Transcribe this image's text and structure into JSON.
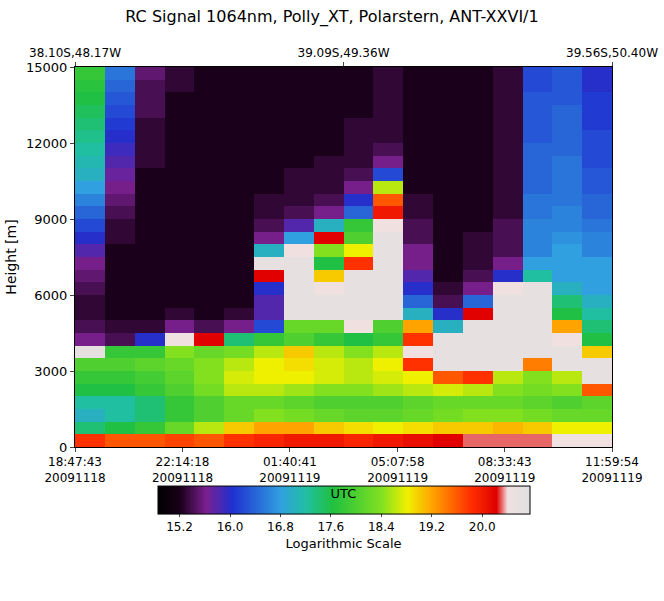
{
  "chart_data": {
    "type": "heatmap",
    "title": "RC Signal 1064nm, Polly_XT, Polarstern, ANT-XXVI/1",
    "x_label": "UTC",
    "y_label": "Height [m]",
    "colorbar_title": "Logarithmic Scale",
    "grid": false,
    "x": [
      "2009-11-18 19:16:23",
      "2009-11-18 20:13:44",
      "2009-11-18 21:11:04",
      "2009-11-18 22:08:25",
      "2009-11-18 23:05:46",
      "2009-11-19 00:03:06",
      "2009-11-19 01:00:27",
      "2009-11-19 01:57:47",
      "2009-11-19 02:55:08",
      "2009-11-19 03:52:29",
      "2009-11-19 04:49:49",
      "2009-11-19 05:47:10",
      "2009-11-19 06:44:30",
      "2009-11-19 07:41:51",
      "2009-11-19 08:39:12",
      "2009-11-19 09:36:32",
      "2009-11-19 10:33:53",
      "2009-11-19 11:31:13"
    ],
    "y": [
      250,
      750,
      1250,
      1750,
      2250,
      2750,
      3250,
      3750,
      4250,
      4750,
      5250,
      5750,
      6250,
      6750,
      7250,
      7750,
      8250,
      8750,
      9250,
      9750,
      10250,
      10750,
      11250,
      11750,
      12250,
      12750,
      13250,
      13750,
      14250,
      14750
    ],
    "z": [
      [
        19.8,
        19.6,
        19.6,
        19.7,
        19.6,
        19.8,
        19.9,
        20.0,
        20.0,
        19.9,
        20.0,
        20.1,
        20.2,
        20.3,
        20.3,
        20.3,
        20.4,
        20.4
      ],
      [
        17.4,
        17.6,
        17.8,
        18.2,
        18.6,
        19.0,
        19.2,
        19.2,
        19.0,
        18.9,
        18.8,
        18.9,
        19.0,
        19.0,
        19.1,
        19.0,
        18.8,
        18.8
      ],
      [
        17.0,
        17.2,
        17.4,
        17.8,
        18.0,
        18.2,
        18.4,
        18.3,
        18.2,
        18.1,
        18.1,
        18.2,
        18.3,
        18.4,
        18.4,
        18.3,
        18.2,
        18.2
      ],
      [
        17.2,
        17.2,
        17.4,
        17.8,
        18.0,
        18.2,
        18.2,
        18.1,
        18.0,
        18.0,
        18.0,
        18.1,
        18.2,
        18.2,
        18.2,
        18.1,
        18.0,
        18.1
      ],
      [
        17.6,
        17.6,
        17.8,
        18.0,
        18.3,
        18.6,
        18.6,
        18.5,
        18.4,
        18.4,
        18.5,
        18.6,
        18.7,
        18.6,
        18.4,
        18.3,
        18.4,
        19.6
      ],
      [
        17.8,
        17.8,
        17.9,
        18.1,
        18.4,
        18.7,
        18.8,
        18.8,
        18.7,
        18.6,
        18.7,
        18.8,
        19.6,
        19.8,
        18.6,
        18.4,
        18.6,
        20.6
      ],
      [
        18.0,
        18.0,
        18.1,
        18.2,
        18.4,
        18.6,
        18.8,
        18.9,
        18.7,
        18.6,
        18.8,
        19.8,
        20.6,
        20.6,
        20.6,
        19.4,
        20.6,
        20.6
      ],
      [
        20.6,
        17.8,
        17.8,
        18.4,
        18.2,
        18.3,
        18.6,
        19.0,
        18.6,
        18.4,
        18.6,
        20.4,
        20.6,
        20.6,
        20.6,
        20.6,
        20.6,
        19.0
      ],
      [
        15.6,
        15.4,
        16.0,
        20.4,
        20.2,
        17.4,
        17.8,
        18.0,
        17.8,
        17.6,
        17.8,
        19.8,
        20.6,
        20.6,
        20.6,
        20.6,
        20.4,
        17.6
      ],
      [
        15.4,
        15.3,
        15.3,
        15.6,
        15.4,
        15.6,
        16.2,
        18.2,
        18.2,
        20.4,
        18.0,
        19.2,
        17.0,
        20.6,
        20.6,
        20.6,
        19.2,
        17.4
      ],
      [
        15.3,
        15.2,
        15.2,
        15.3,
        15.2,
        15.3,
        15.8,
        20.6,
        20.6,
        20.6,
        20.6,
        17.0,
        16.0,
        20.2,
        20.6,
        20.6,
        17.6,
        17.2
      ],
      [
        15.3,
        15.2,
        15.2,
        15.2,
        15.2,
        15.2,
        15.8,
        20.6,
        20.6,
        20.6,
        20.6,
        16.4,
        15.4,
        16.4,
        20.6,
        20.6,
        17.4,
        17.0
      ],
      [
        15.4,
        15.2,
        15.2,
        15.2,
        15.2,
        15.2,
        16.0,
        20.6,
        20.4,
        20.6,
        20.6,
        16.0,
        15.3,
        15.6,
        20.4,
        20.6,
        17.0,
        16.8
      ],
      [
        15.5,
        15.2,
        15.2,
        15.2,
        15.2,
        15.2,
        20.2,
        20.6,
        19.0,
        20.6,
        20.6,
        15.8,
        15.2,
        15.4,
        16.0,
        17.2,
        16.8,
        16.8
      ],
      [
        15.6,
        15.2,
        15.2,
        15.2,
        15.2,
        15.2,
        20.6,
        20.6,
        17.6,
        19.8,
        20.6,
        15.6,
        15.2,
        15.3,
        15.6,
        16.8,
        16.8,
        16.8
      ],
      [
        15.8,
        15.2,
        15.2,
        15.2,
        15.2,
        15.2,
        17.0,
        20.4,
        18.4,
        18.8,
        20.6,
        15.6,
        15.2,
        15.3,
        15.4,
        16.6,
        16.8,
        16.6
      ],
      [
        16.0,
        15.3,
        15.2,
        15.2,
        15.2,
        15.2,
        15.6,
        16.8,
        20.2,
        18.0,
        20.6,
        15.4,
        15.2,
        15.3,
        15.4,
        16.6,
        16.7,
        16.6
      ],
      [
        16.2,
        15.3,
        15.2,
        15.2,
        15.2,
        15.2,
        15.4,
        15.8,
        17.0,
        17.8,
        20.4,
        15.4,
        15.2,
        15.2,
        15.4,
        16.6,
        16.6,
        16.5
      ],
      [
        16.4,
        15.4,
        15.2,
        15.2,
        15.2,
        15.2,
        15.3,
        15.4,
        15.6,
        16.4,
        20.0,
        15.3,
        15.2,
        15.2,
        15.3,
        16.5,
        16.6,
        16.4
      ],
      [
        16.6,
        15.5,
        15.2,
        15.2,
        15.2,
        15.2,
        15.3,
        15.3,
        15.4,
        16.0,
        19.6,
        15.3,
        15.2,
        15.2,
        15.3,
        16.5,
        16.5,
        16.4
      ],
      [
        16.8,
        15.6,
        15.2,
        15.2,
        15.2,
        15.2,
        15.2,
        15.3,
        15.3,
        15.6,
        18.6,
        15.2,
        15.2,
        15.2,
        15.3,
        16.4,
        16.5,
        16.3
      ],
      [
        17.0,
        15.7,
        15.2,
        15.2,
        15.2,
        15.2,
        15.2,
        15.3,
        15.3,
        15.4,
        16.2,
        15.2,
        15.2,
        15.2,
        15.3,
        16.4,
        16.5,
        16.3
      ],
      [
        17.1,
        15.8,
        15.3,
        15.2,
        15.2,
        15.2,
        15.2,
        15.2,
        15.3,
        15.3,
        15.6,
        15.2,
        15.2,
        15.2,
        15.3,
        16.4,
        16.5,
        16.2
      ],
      [
        17.2,
        15.9,
        15.3,
        15.2,
        15.2,
        15.2,
        15.2,
        15.2,
        15.2,
        15.3,
        15.4,
        15.2,
        15.2,
        15.2,
        15.3,
        16.4,
        16.4,
        16.2
      ],
      [
        17.3,
        16.0,
        15.3,
        15.2,
        15.2,
        15.2,
        15.2,
        15.2,
        15.2,
        15.3,
        15.3,
        15.2,
        15.2,
        15.2,
        15.3,
        16.3,
        16.4,
        16.2
      ],
      [
        17.4,
        16.1,
        15.3,
        15.2,
        15.2,
        15.2,
        15.2,
        15.2,
        15.2,
        15.3,
        15.3,
        15.2,
        15.2,
        15.2,
        15.3,
        16.3,
        16.4,
        16.1
      ],
      [
        17.5,
        16.2,
        15.4,
        15.2,
        15.2,
        15.2,
        15.2,
        15.2,
        15.2,
        15.2,
        15.3,
        15.2,
        15.2,
        15.2,
        15.3,
        16.3,
        16.4,
        16.1
      ],
      [
        17.6,
        16.3,
        15.4,
        15.2,
        15.2,
        15.2,
        15.2,
        15.2,
        15.2,
        15.2,
        15.3,
        15.2,
        15.2,
        15.2,
        15.3,
        16.3,
        16.3,
        16.1
      ],
      [
        17.7,
        16.4,
        15.4,
        15.3,
        15.2,
        15.2,
        15.2,
        15.2,
        15.2,
        15.2,
        15.3,
        15.2,
        15.2,
        15.2,
        15.3,
        16.2,
        16.3,
        16.0
      ],
      [
        17.8,
        16.5,
        15.5,
        15.3,
        15.2,
        15.2,
        15.2,
        15.2,
        15.2,
        15.2,
        15.3,
        15.2,
        15.2,
        15.2,
        15.3,
        16.2,
        16.3,
        16.0
      ]
    ],
    "xlim": [
      "2009-11-18 18:47:43",
      "2009-11-19 11:59:54"
    ],
    "xticks": [
      {
        "value": "2009-11-18 18:47:43",
        "label": "18:47:43\n20091118"
      },
      {
        "value": "2009-11-18 22:14:18",
        "label": "22:14:18\n20091118"
      },
      {
        "value": "2009-11-19 01:40:41",
        "label": "01:40:41\n20091119"
      },
      {
        "value": "2009-11-19 05:07:58",
        "label": "05:07:58\n20091119"
      },
      {
        "value": "2009-11-19 08:33:43",
        "label": "08:33:43\n20091119"
      },
      {
        "value": "2009-11-19 11:59:54",
        "label": "11:59:54\n20091119"
      }
    ],
    "x2ticks": [
      {
        "value": "2009-11-18 18:47:43",
        "label": "38.10S,48.17W"
      },
      {
        "value": "2009-11-19 03:23:48",
        "label": "39.09S,49.36W"
      },
      {
        "value": "2009-11-19 11:59:54",
        "label": "39.56S,50.40W"
      }
    ],
    "ylim": [
      0,
      15000
    ],
    "yticks": [
      0,
      3000,
      6000,
      9000,
      12000,
      15000
    ],
    "zlim": [
      14.85,
      20.75
    ],
    "zticks": [
      15.2,
      {
        "value": 16,
        "label": "16.0"
      },
      16.8,
      17.6,
      18.4,
      19.2,
      {
        "value": 20,
        "label": "20.0"
      }
    ]
  }
}
